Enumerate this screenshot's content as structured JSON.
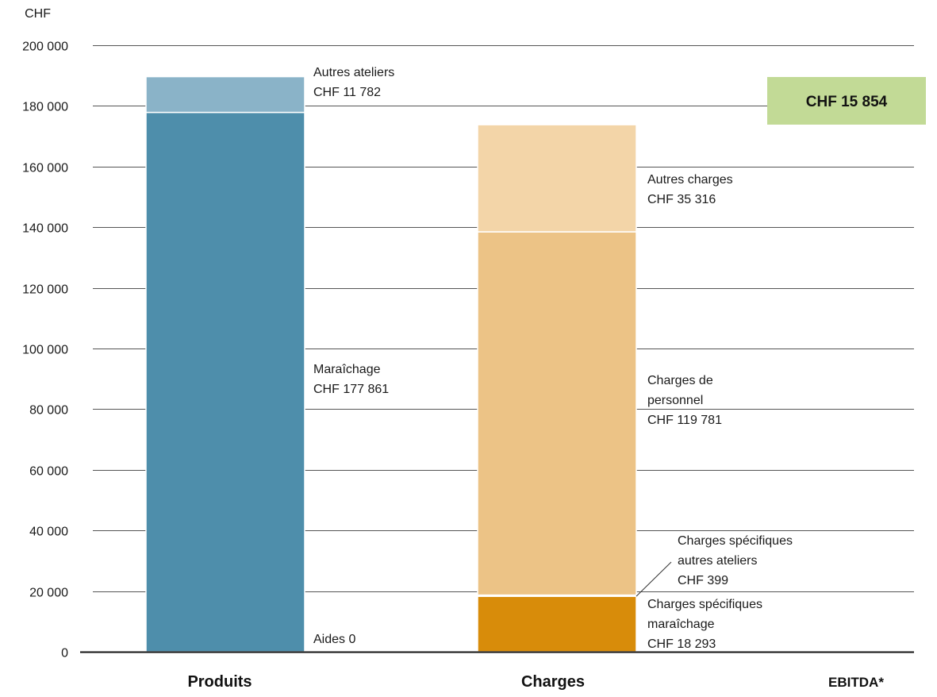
{
  "chart_data": {
    "type": "bar",
    "stacked": true,
    "unit_label": "CHF",
    "ylim": [
      0,
      200000
    ],
    "y_ticks": [
      0,
      20000,
      40000,
      60000,
      80000,
      100000,
      120000,
      140000,
      160000,
      180000,
      200000
    ],
    "y_tick_labels": [
      "0",
      "20 000",
      "40 000",
      "60 000",
      "80 000",
      "100 000",
      "120 000",
      "140 000",
      "160 000",
      "180 000",
      "200 000"
    ],
    "grid": true,
    "categories": [
      "Produits",
      "Charges",
      "EBITDA*"
    ],
    "bars": [
      {
        "category": "Produits",
        "segments": [
          {
            "name": "Aides",
            "value": 0,
            "label": [
              "Aides 0"
            ],
            "color": "#4e8eab"
          },
          {
            "name": "Maraîchage",
            "value": 177861,
            "label": [
              "Maraîchage",
              "CHF 177 861"
            ],
            "color": "#4e8eab"
          },
          {
            "name": "Autres ateliers",
            "value": 11782,
            "label": [
              "Autres ateliers",
              "CHF 11 782"
            ],
            "color": "#8ab3c8"
          }
        ]
      },
      {
        "category": "Charges",
        "segments": [
          {
            "name": "Charges spécifiques maraîchage",
            "value": 18293,
            "label": [
              "Charges spécifiques",
              "maraîchage",
              "CHF 18 293"
            ],
            "color": "#d88c0a"
          },
          {
            "name": "Charges spécifiques autres ateliers",
            "value": 399,
            "label": [
              "Charges spécifiques",
              "autres ateliers",
              "CHF 399"
            ],
            "color": "#f3cc8e"
          },
          {
            "name": "Charges de personnel",
            "value": 119781,
            "label": [
              "Charges de",
              "personnel",
              "CHF 119 781"
            ],
            "color": "#ecc386"
          },
          {
            "name": "Autres charges",
            "value": 35316,
            "label": [
              "Autres charges",
              "CHF 35 316"
            ],
            "color": "#f3d5a8"
          }
        ]
      }
    ],
    "ebitda": {
      "category": "EBITDA*",
      "value": 15854,
      "label": "CHF 15 854",
      "color": "#c2da96"
    }
  }
}
